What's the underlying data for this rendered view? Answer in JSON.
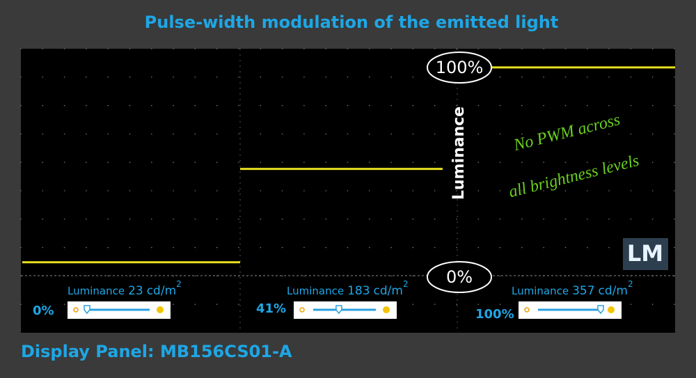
{
  "title": "Pulse-width modulation of the emitted light",
  "scope": {
    "top_label": "100%",
    "bottom_label": "0%",
    "axis_label": "Luminance",
    "note": [
      "No PWM across",
      "all brightness levels"
    ],
    "logo": "LM"
  },
  "panels": [
    {
      "brightness": 0,
      "brightness_label": "0%",
      "luminance_label": "Luminance",
      "luminance": 23,
      "unit": "cd/m",
      "unit_exp": "2"
    },
    {
      "brightness": 41,
      "brightness_label": "41%",
      "luminance_label": "Luminance",
      "luminance": 183,
      "unit": "cd/m",
      "unit_exp": "2"
    },
    {
      "brightness": 100,
      "brightness_label": "100%",
      "luminance_label": "Luminance",
      "luminance": 357,
      "unit": "cd/m",
      "unit_exp": "2"
    }
  ],
  "footer": "Display Panel: MB156CS01-A"
}
